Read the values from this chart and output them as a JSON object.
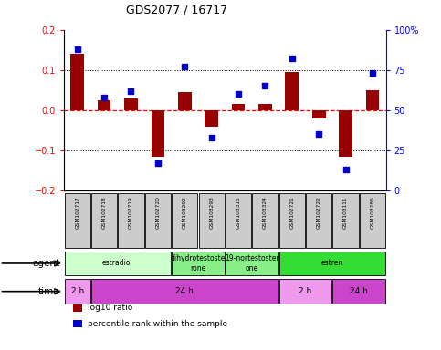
{
  "title": "GDS2077 / 16717",
  "samples": [
    "GSM102717",
    "GSM102718",
    "GSM102719",
    "GSM102720",
    "GSM103292",
    "GSM103293",
    "GSM103315",
    "GSM103324",
    "GSM102721",
    "GSM102722",
    "GSM103111",
    "GSM103286"
  ],
  "log10_ratio": [
    0.14,
    0.025,
    0.03,
    -0.115,
    0.045,
    -0.04,
    0.015,
    0.015,
    0.095,
    -0.02,
    -0.115,
    0.05
  ],
  "percentile": [
    88,
    58,
    62,
    17,
    77,
    33,
    60,
    65,
    82,
    35,
    13,
    73
  ],
  "bar_color": "#990000",
  "dot_color": "#0000cc",
  "ylim_left": [
    -0.2,
    0.2
  ],
  "ylim_right": [
    0,
    100
  ],
  "yticks_left": [
    -0.2,
    -0.1,
    0.0,
    0.1,
    0.2
  ],
  "yticks_right": [
    0,
    25,
    50,
    75,
    100
  ],
  "ytick_labels_right": [
    "0",
    "25",
    "50",
    "75",
    "100%"
  ],
  "hlines": [
    0.1,
    0.0,
    -0.1
  ],
  "hline_styles": [
    "dotted",
    "dashed",
    "dotted"
  ],
  "hline_colors": [
    "black",
    "red",
    "black"
  ],
  "agent_labels": [
    {
      "text": "estradiol",
      "start": 0,
      "end": 3,
      "color": "#ccffcc"
    },
    {
      "text": "dihydrotestoste\nrone",
      "start": 4,
      "end": 5,
      "color": "#88ee88"
    },
    {
      "text": "19-nortestoster\none",
      "start": 6,
      "end": 7,
      "color": "#88ee88"
    },
    {
      "text": "estren",
      "start": 8,
      "end": 11,
      "color": "#33dd33"
    }
  ],
  "time_labels": [
    {
      "text": "2 h",
      "start": 0,
      "end": 0,
      "color": "#ee99ee"
    },
    {
      "text": "24 h",
      "start": 1,
      "end": 7,
      "color": "#cc44cc"
    },
    {
      "text": "2 h",
      "start": 8,
      "end": 9,
      "color": "#ee99ee"
    },
    {
      "text": "24 h",
      "start": 10,
      "end": 11,
      "color": "#cc44cc"
    }
  ],
  "legend_items": [
    {
      "color": "#990000",
      "label": "log10 ratio"
    },
    {
      "color": "#0000cc",
      "label": "percentile rank within the sample"
    }
  ],
  "xlabel_agent": "agent",
  "xlabel_time": "time",
  "bg_color": "#ffffff",
  "sample_box_color": "#cccccc"
}
